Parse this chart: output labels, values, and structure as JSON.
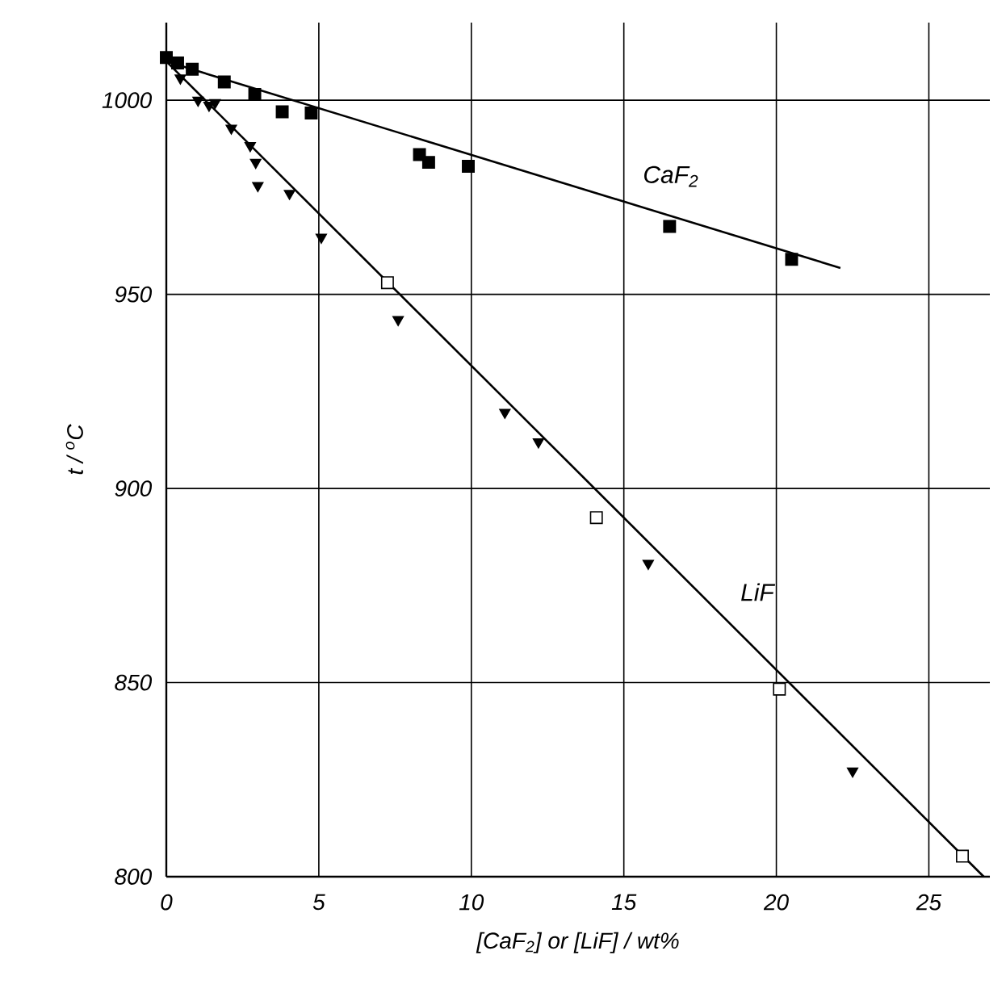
{
  "chart_data": {
    "type": "scatter",
    "xlabel": "[CaF$_{2}$]  or  [LiF]   / wt%",
    "ylabel": "t  /  $^{o}$C",
    "xlim": [
      0,
      27
    ],
    "ylim": [
      800,
      1020
    ],
    "xticks": [
      0,
      5,
      10,
      15,
      20,
      25
    ],
    "yticks": [
      800,
      850,
      900,
      950,
      1000
    ],
    "grid": true,
    "series": [
      {
        "color": "#000000",
        "marker": "square",
        "x": [
          0,
          0.37,
          0.85,
          1.9,
          2.9,
          3.8,
          4.75,
          8.3,
          8.6,
          9.9,
          16.5,
          20.5
        ],
        "values": [
          1011,
          1009.6,
          1008,
          1004.7,
          1001.5,
          997,
          996.7,
          986,
          984,
          983,
          967.5,
          959
        ]
      },
      {
        "color": "#000000",
        "marker": "triangle",
        "x": [
          0.46,
          1.04,
          1.4,
          1.6,
          2.13,
          2.75,
          2.93,
          3.0,
          4.04,
          5.08,
          7.6,
          11.1,
          12.2,
          15.8,
          22.5
        ],
        "values": [
          1005.7,
          1000,
          998.7,
          999.4,
          992.8,
          988.3,
          984,
          978,
          976,
          964.7,
          943.5,
          919.6,
          912,
          880.7,
          827.2
        ]
      },
      {
        "color": "#ffffff",
        "marker": "square",
        "x": [
          7.25,
          14.1,
          20.1,
          26.1
        ],
        "values": [
          953,
          892.5,
          848.3,
          805.3
        ]
      },
      {
        "type": "line",
        "name": "CaF$_{2}$",
        "color": "#000000",
        "marker": "none",
        "x": [
          0,
          22.1
        ],
        "values": [
          1010,
          956.8
        ]
      },
      {
        "type": "line",
        "name": "LiF",
        "color": "#000000",
        "marker": "none",
        "x": [
          0,
          26.8
        ],
        "values": [
          1010,
          800
        ]
      }
    ]
  }
}
